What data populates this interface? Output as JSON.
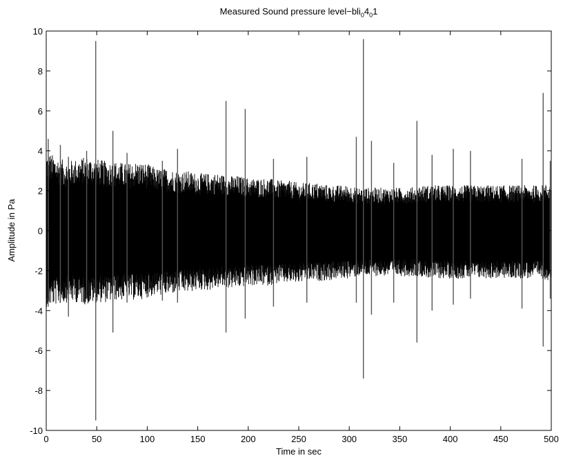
{
  "chart_data": {
    "type": "line",
    "title": "Measured Sound pressure level-bli₀4₀1",
    "title_parts": {
      "main": "Measured Sound pressure level−bli",
      "sub1": "0",
      "mid": "4",
      "sub2": "0",
      "end": "1"
    },
    "xlabel": "Time in sec",
    "ylabel": "Amplitude in Pa",
    "xlim": [
      0,
      500
    ],
    "ylim": [
      -10,
      10
    ],
    "xticks": [
      0,
      50,
      100,
      150,
      200,
      250,
      300,
      350,
      400,
      450,
      500
    ],
    "yticks": [
      -10,
      -8,
      -6,
      -4,
      -2,
      0,
      2,
      4,
      6,
      8,
      10
    ],
    "grid": false,
    "line_color": "#000000",
    "spike_color": "#555555",
    "envelope": {
      "x": [
        0,
        10,
        20,
        30,
        40,
        50,
        60,
        70,
        80,
        90,
        100,
        110,
        120,
        130,
        140,
        150,
        160,
        170,
        180,
        190,
        200,
        210,
        220,
        230,
        240,
        250,
        260,
        270,
        280,
        290,
        300,
        310,
        320,
        330,
        340,
        350,
        360,
        370,
        380,
        390,
        400,
        410,
        420,
        430,
        440,
        450,
        460,
        470,
        480,
        490,
        500
      ],
      "upper": [
        3.3,
        3.1,
        2.9,
        3.0,
        3.1,
        3.0,
        2.9,
        2.9,
        2.8,
        2.9,
        2.8,
        2.6,
        2.6,
        2.5,
        2.5,
        2.4,
        2.4,
        2.4,
        2.3,
        2.3,
        2.2,
        2.2,
        2.2,
        2.1,
        2.1,
        2.0,
        2.0,
        2.0,
        1.9,
        1.9,
        1.9,
        1.8,
        1.8,
        1.8,
        1.8,
        1.8,
        1.8,
        1.9,
        1.9,
        1.9,
        1.9,
        1.9,
        1.9,
        1.9,
        1.9,
        1.9,
        1.9,
        1.9,
        1.9,
        1.9,
        2.0
      ],
      "lower": [
        -3.2,
        -3.1,
        -3.0,
        -3.0,
        -3.1,
        -3.0,
        -3.0,
        -2.9,
        -2.9,
        -2.9,
        -2.8,
        -2.7,
        -2.7,
        -2.6,
        -2.6,
        -2.5,
        -2.5,
        -2.4,
        -2.4,
        -2.4,
        -2.3,
        -2.3,
        -2.3,
        -2.2,
        -2.2,
        -2.2,
        -2.1,
        -2.1,
        -2.1,
        -2.0,
        -2.0,
        -1.9,
        -1.9,
        -1.9,
        -1.9,
        -1.9,
        -1.9,
        -1.9,
        -2.0,
        -2.0,
        -2.0,
        -2.0,
        -2.0,
        -2.0,
        -2.0,
        -2.0,
        -2.0,
        -2.0,
        -2.0,
        -2.0,
        -2.1
      ]
    },
    "spikes": [
      {
        "x": 2,
        "max": 4.6,
        "min": -3.8
      },
      {
        "x": 14,
        "max": 4.3,
        "min": -3.6
      },
      {
        "x": 22,
        "max": 3.7,
        "min": -4.3
      },
      {
        "x": 40,
        "max": 4.0,
        "min": -3.4
      },
      {
        "x": 49,
        "max": 9.5,
        "min": -9.5
      },
      {
        "x": 66,
        "max": 5.0,
        "min": -5.1
      },
      {
        "x": 80,
        "max": 3.9,
        "min": -3.6
      },
      {
        "x": 115,
        "max": 3.5,
        "min": -3.5
      },
      {
        "x": 130,
        "max": 4.1,
        "min": -3.6
      },
      {
        "x": 178,
        "max": 6.5,
        "min": -5.1
      },
      {
        "x": 197,
        "max": 6.1,
        "min": -4.4
      },
      {
        "x": 225,
        "max": 3.6,
        "min": -3.8
      },
      {
        "x": 258,
        "max": 3.7,
        "min": -3.6
      },
      {
        "x": 307,
        "max": 4.7,
        "min": -3.6
      },
      {
        "x": 314,
        "max": 9.6,
        "min": -7.4
      },
      {
        "x": 322,
        "max": 4.5,
        "min": -4.2
      },
      {
        "x": 344,
        "max": 3.4,
        "min": -3.6
      },
      {
        "x": 367,
        "max": 5.5,
        "min": -5.6
      },
      {
        "x": 382,
        "max": 3.8,
        "min": -4.0
      },
      {
        "x": 403,
        "max": 4.1,
        "min": -3.7
      },
      {
        "x": 420,
        "max": 4.0,
        "min": -3.4
      },
      {
        "x": 471,
        "max": 3.6,
        "min": -3.9
      },
      {
        "x": 492,
        "max": 6.9,
        "min": -5.8
      },
      {
        "x": 499,
        "max": 3.5,
        "min": -3.4
      }
    ]
  }
}
